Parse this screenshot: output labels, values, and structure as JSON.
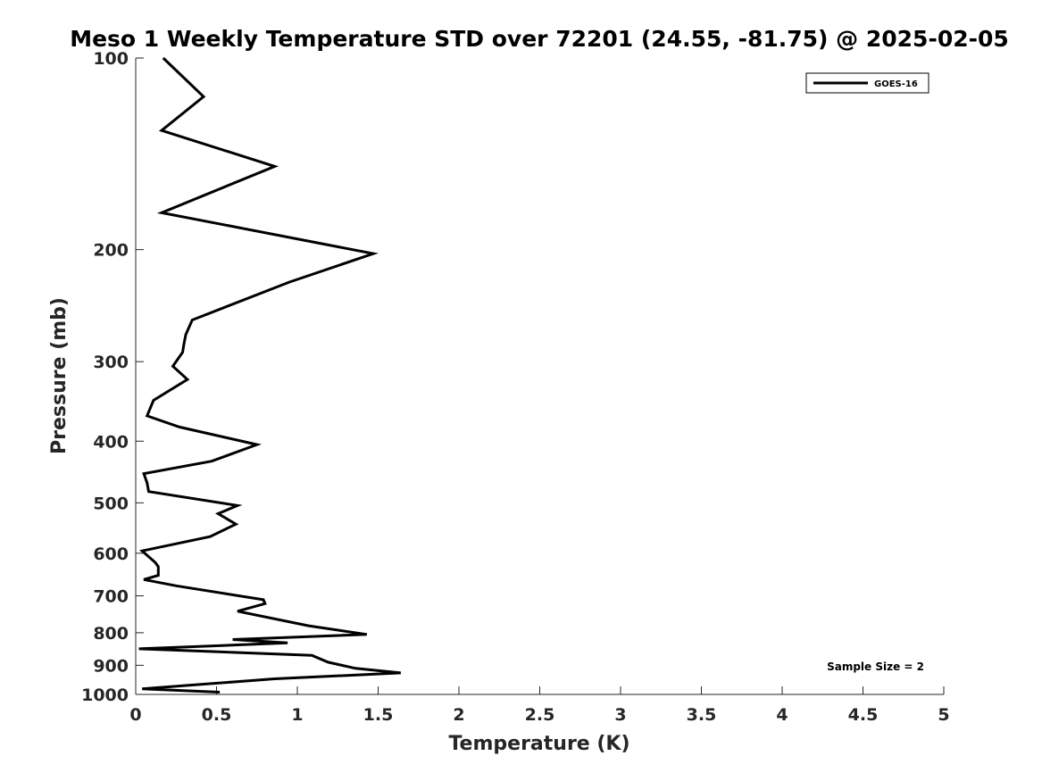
{
  "chart_data": {
    "type": "line",
    "title": "Meso 1 Weekly Temperature STD over 72201 (24.55, -81.75) @ 2025-02-05",
    "xlabel": "Temperature (K)",
    "ylabel": "Pressure (mb)",
    "xlim": [
      0,
      5
    ],
    "ylim": [
      100,
      1000
    ],
    "yscale": "log",
    "yreversed": true,
    "x_ticks": [
      "0",
      "0.5",
      "1",
      "1.5",
      "2",
      "2.5",
      "3",
      "3.5",
      "4",
      "4.5",
      "5"
    ],
    "y_ticks": [
      "100",
      "200",
      "300",
      "400",
      "500",
      "600",
      "700",
      "800",
      "900",
      "1000"
    ],
    "grid": false,
    "legend": {
      "position": "top-right",
      "entries": [
        "GOES-16"
      ]
    },
    "annotation": "Sample Size = 2",
    "series": [
      {
        "name": "GOES-16",
        "color": "#000000",
        "points": [
          [
            0.17,
            100
          ],
          [
            0.42,
            115
          ],
          [
            0.16,
            130
          ],
          [
            0.86,
            148
          ],
          [
            0.16,
            175
          ],
          [
            1.47,
            203
          ],
          [
            0.95,
            225
          ],
          [
            0.35,
            258
          ],
          [
            0.31,
            272
          ],
          [
            0.3,
            280
          ],
          [
            0.29,
            290
          ],
          [
            0.23,
            305
          ],
          [
            0.32,
            320
          ],
          [
            0.11,
            345
          ],
          [
            0.07,
            365
          ],
          [
            0.27,
            380
          ],
          [
            0.75,
            405
          ],
          [
            0.47,
            430
          ],
          [
            0.05,
            450
          ],
          [
            0.07,
            465
          ],
          [
            0.08,
            480
          ],
          [
            0.63,
            505
          ],
          [
            0.51,
            520
          ],
          [
            0.62,
            540
          ],
          [
            0.46,
            565
          ],
          [
            0.04,
            595
          ],
          [
            0.12,
            620
          ],
          [
            0.14,
            630
          ],
          [
            0.14,
            650
          ],
          [
            0.05,
            660
          ],
          [
            0.25,
            675
          ],
          [
            0.79,
            710
          ],
          [
            0.8,
            720
          ],
          [
            0.63,
            740
          ],
          [
            1.07,
            780
          ],
          [
            1.43,
            805
          ],
          [
            0.6,
            820
          ],
          [
            0.94,
            830
          ],
          [
            0.02,
            848
          ],
          [
            1.09,
            868
          ],
          [
            1.19,
            890
          ],
          [
            1.36,
            910
          ],
          [
            1.64,
            925
          ],
          [
            0.86,
            945
          ],
          [
            0.32,
            968
          ],
          [
            0.04,
            980
          ],
          [
            0.52,
            992
          ]
        ]
      }
    ]
  }
}
